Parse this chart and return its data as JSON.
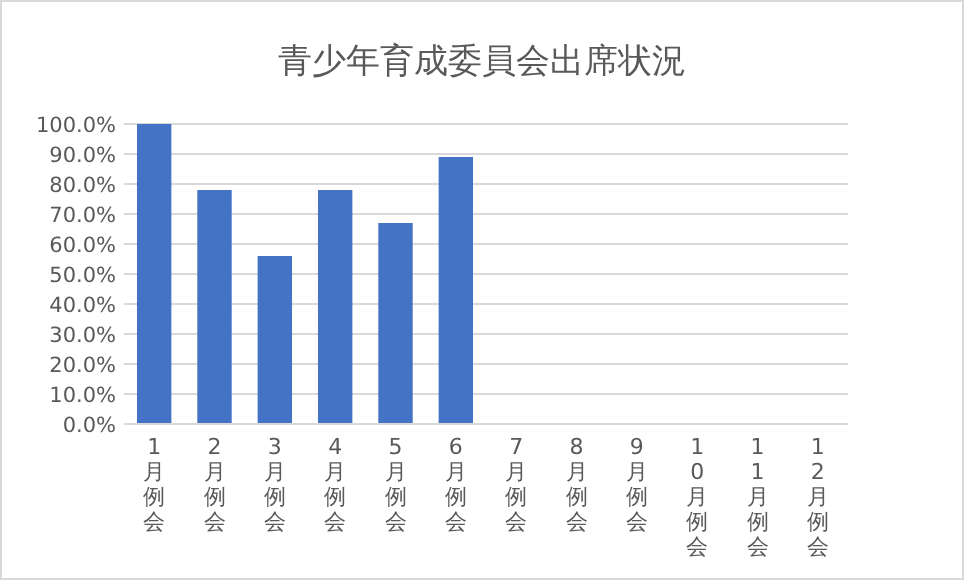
{
  "chart_data": {
    "type": "bar",
    "title": "青少年育成委員会出席状況",
    "categories": [
      "1月例会",
      "2月例会",
      "3月例会",
      "4月例会",
      "5月例会",
      "6月例会",
      "7月例会",
      "8月例会",
      "9月例会",
      "10月例会",
      "11月例会",
      "12月例会"
    ],
    "values": [
      100,
      78,
      56,
      78,
      67,
      89,
      null,
      null,
      null,
      null,
      null,
      null
    ],
    "color": "#4472c4",
    "ylim": [
      0,
      100
    ],
    "yticks": [
      {
        "value": 0,
        "label": "0.0%"
      },
      {
        "value": 10,
        "label": "10.0%"
      },
      {
        "value": 20,
        "label": "20.0%"
      },
      {
        "value": 30,
        "label": "30.0%"
      },
      {
        "value": 40,
        "label": "40.0%"
      },
      {
        "value": 50,
        "label": "50.0%"
      },
      {
        "value": 60,
        "label": "60.0%"
      },
      {
        "value": 70,
        "label": "70.0%"
      },
      {
        "value": 80,
        "label": "80.0%"
      },
      {
        "value": 90,
        "label": "90.0%"
      },
      {
        "value": 100,
        "label": "100.0%"
      }
    ],
    "grid": "y"
  }
}
